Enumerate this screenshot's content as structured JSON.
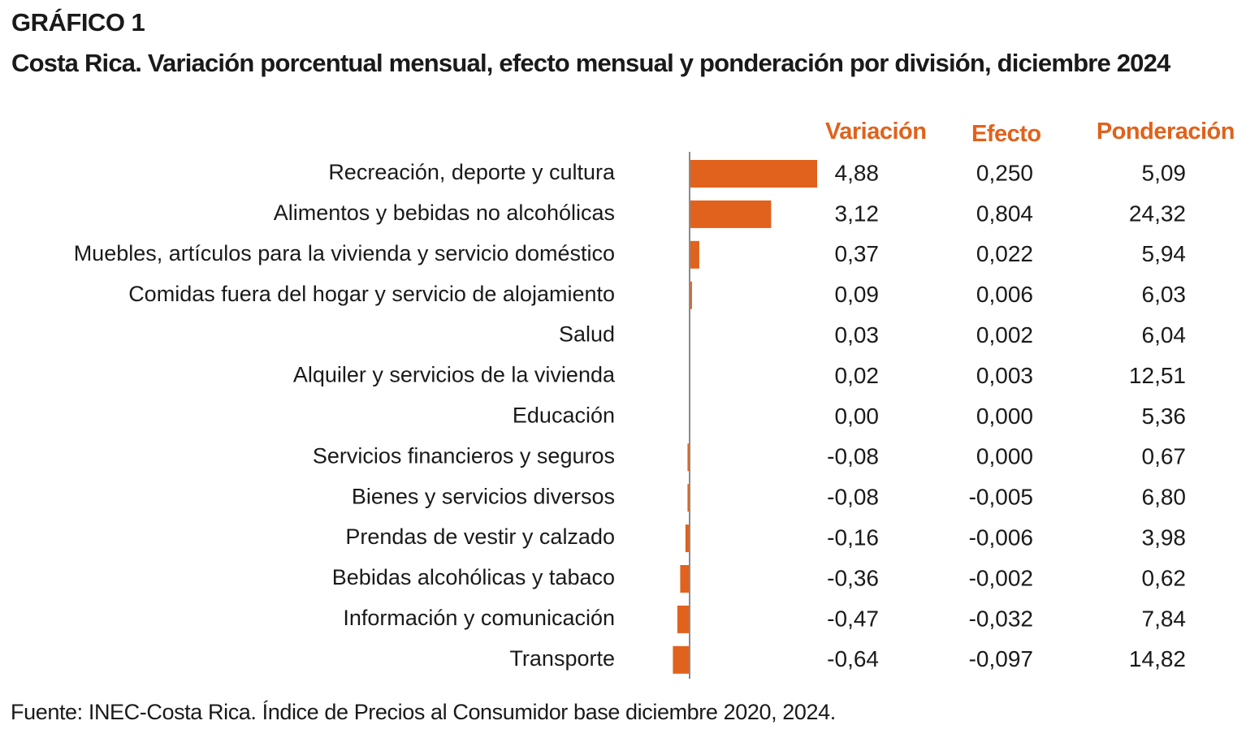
{
  "title_label": "GRÁFICO 1",
  "title": "Costa Rica. Variación porcentual mensual, efecto mensual y ponderación por división, diciembre 2024",
  "source": "Fuente: INEC-Costa Rica. Índice de Precios al Consumidor base diciembre 2020, 2024.",
  "headers": {
    "variacion": "Variación",
    "efecto": "Efecto",
    "ponderacion": "Ponderación"
  },
  "colors": {
    "bar": "#e0621c",
    "axis": "#8a8a8a",
    "header": "#e0621c"
  },
  "chart_data": {
    "type": "bar",
    "orientation": "horizontal",
    "title": "Costa Rica. Variación porcentual mensual, efecto mensual y ponderación por división, diciembre 2024",
    "categories": [
      "Recreación, deporte y cultura",
      "Alimentos y bebidas no alcohólicas",
      "Muebles, artículos para la vivienda y servicio doméstico",
      "Comidas fuera del hogar y servicio de alojamiento",
      "Salud",
      "Alquiler y servicios de la vivienda",
      "Educación",
      "Servicios financieros y seguros",
      "Bienes y servicios diversos",
      "Prendas de vestir y calzado",
      "Bebidas alcohólicas y tabaco",
      "Información y comunicación",
      "Transporte"
    ],
    "values": [
      4.88,
      3.12,
      0.37,
      0.09,
      0.03,
      0.02,
      0.0,
      -0.08,
      -0.08,
      -0.16,
      -0.36,
      -0.47,
      -0.64
    ],
    "variacion_labels": [
      "4,88",
      "3,12",
      "0,37",
      "0,09",
      "0,03",
      "0,02",
      "0,00",
      "-0,08",
      "-0,08",
      "-0,16",
      "-0,36",
      "-0,47",
      "-0,64"
    ],
    "efecto_labels": [
      "0,250",
      "0,804",
      "0,022",
      "0,006",
      "0,002",
      "0,003",
      "0,000",
      "0,000",
      "-0,005",
      "-0,006",
      "-0,002",
      "-0,032",
      "-0,097"
    ],
    "ponderacion_labels": [
      "5,09",
      "24,32",
      "5,94",
      "6,03",
      "6,04",
      "12,51",
      "5,36",
      "0,67",
      "6,80",
      "3,98",
      "0,62",
      "7,84",
      "14,82"
    ],
    "xlim": [
      -0.64,
      4.88
    ],
    "grid": false,
    "legend": "none"
  }
}
